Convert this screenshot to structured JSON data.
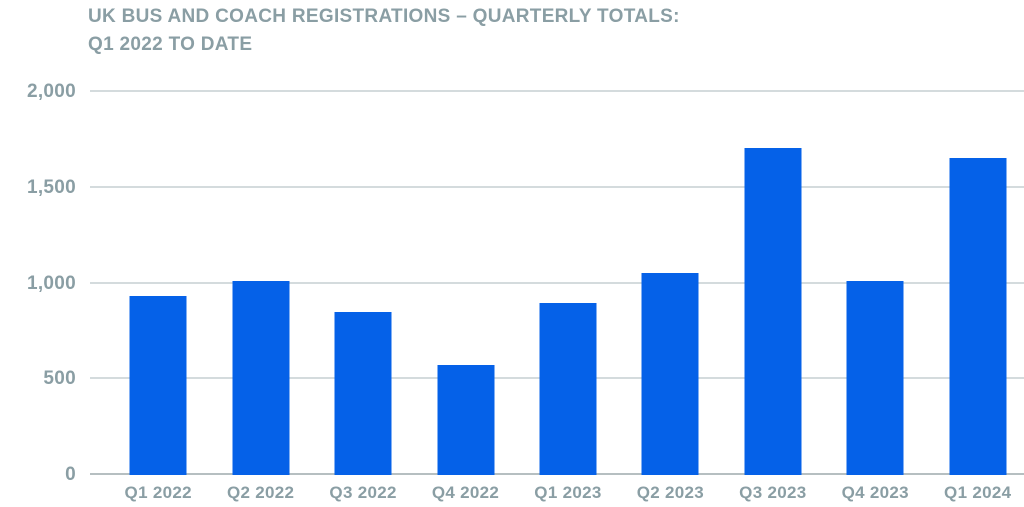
{
  "title": {
    "line1": "UK BUS AND COACH REGISTRATIONS – QUARTERLY TOTALS:",
    "line2": "Q1 2022 TO DATE"
  },
  "colors": {
    "bar": "#0561e8",
    "text": "#8a9ea4",
    "gridline": "#d4dbdd",
    "baseline": "#b6bfc1",
    "background": "#ffffff"
  },
  "chart_data": {
    "type": "bar",
    "title": "UK BUS AND COACH REGISTRATIONS – QUARTERLY TOTALS: Q1 2022 TO DATE",
    "categories": [
      "Q1 2022",
      "Q2 2022",
      "Q3 2022",
      "Q4 2022",
      "Q1 2023",
      "Q2 2023",
      "Q3 2023",
      "Q4 2023",
      "Q1 2024"
    ],
    "values": [
      935,
      1015,
      850,
      575,
      900,
      1055,
      1710,
      1015,
      1655
    ],
    "xlabel": "",
    "ylabel": "",
    "ylim": [
      0,
      2000
    ],
    "yticks": [
      0,
      500,
      1000,
      1500,
      2000
    ],
    "ytick_labels": [
      "0",
      "500",
      "1,000",
      "1,500",
      "2,000"
    ],
    "grid": true,
    "legend": false
  }
}
